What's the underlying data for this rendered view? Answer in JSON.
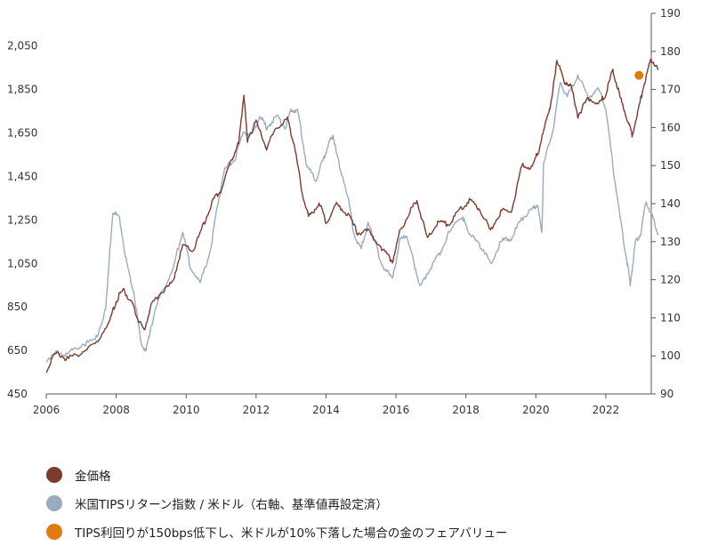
{
  "chart_data": {
    "type": "line",
    "xlim": [
      2006,
      2023.3
    ],
    "ylim_left": [
      450,
      2200
    ],
    "ylim_right": [
      90,
      190
    ],
    "x_ticks": [
      "2006",
      "2008",
      "2010",
      "2012",
      "2014",
      "2016",
      "2018",
      "2020",
      "2022"
    ],
    "y_left_ticks": [
      "450",
      "650",
      "850",
      "1,050",
      "1,250",
      "1,450",
      "1,650",
      "1,850",
      "2,050"
    ],
    "y_right_ticks": [
      "90",
      "100",
      "110",
      "120",
      "130",
      "140",
      "150",
      "160",
      "170",
      "180",
      "190"
    ],
    "colors": {
      "gold": "#7b3b2e",
      "tips": "#9aabc0",
      "fair_value": "#e07b10",
      "axis": "#555555"
    },
    "series": [
      {
        "key": "gold",
        "name": "金価格",
        "axis": "left",
        "points": [
          [
            2006.0,
            560
          ],
          [
            2006.3,
            640
          ],
          [
            2006.6,
            610
          ],
          [
            2007.0,
            640
          ],
          [
            2007.4,
            680
          ],
          [
            2007.8,
            780
          ],
          [
            2008.0,
            880
          ],
          [
            2008.2,
            930
          ],
          [
            2008.45,
            870
          ],
          [
            2008.6,
            800
          ],
          [
            2008.8,
            740
          ],
          [
            2009.0,
            860
          ],
          [
            2009.3,
            920
          ],
          [
            2009.6,
            960
          ],
          [
            2009.9,
            1130
          ],
          [
            2010.2,
            1110
          ],
          [
            2010.5,
            1230
          ],
          [
            2010.8,
            1350
          ],
          [
            2011.0,
            1390
          ],
          [
            2011.3,
            1530
          ],
          [
            2011.5,
            1600
          ],
          [
            2011.65,
            1830
          ],
          [
            2011.75,
            1620
          ],
          [
            2012.0,
            1700
          ],
          [
            2012.3,
            1580
          ],
          [
            2012.6,
            1680
          ],
          [
            2012.9,
            1710
          ],
          [
            2013.1,
            1590
          ],
          [
            2013.3,
            1390
          ],
          [
            2013.5,
            1260
          ],
          [
            2013.8,
            1330
          ],
          [
            2014.0,
            1240
          ],
          [
            2014.3,
            1320
          ],
          [
            2014.6,
            1280
          ],
          [
            2014.9,
            1190
          ],
          [
            2015.2,
            1200
          ],
          [
            2015.6,
            1120
          ],
          [
            2015.9,
            1060
          ],
          [
            2016.1,
            1190
          ],
          [
            2016.4,
            1290
          ],
          [
            2016.6,
            1340
          ],
          [
            2016.9,
            1160
          ],
          [
            2017.2,
            1240
          ],
          [
            2017.5,
            1230
          ],
          [
            2017.8,
            1290
          ],
          [
            2018.1,
            1340
          ],
          [
            2018.4,
            1300
          ],
          [
            2018.7,
            1200
          ],
          [
            2019.0,
            1290
          ],
          [
            2019.3,
            1290
          ],
          [
            2019.6,
            1500
          ],
          [
            2019.9,
            1490
          ],
          [
            2020.1,
            1580
          ],
          [
            2020.3,
            1710
          ],
          [
            2020.45,
            1800
          ],
          [
            2020.6,
            1990
          ],
          [
            2020.8,
            1890
          ],
          [
            2021.0,
            1870
          ],
          [
            2021.2,
            1730
          ],
          [
            2021.5,
            1810
          ],
          [
            2021.8,
            1780
          ],
          [
            2022.0,
            1830
          ],
          [
            2022.2,
            1940
          ],
          [
            2022.4,
            1820
          ],
          [
            2022.6,
            1720
          ],
          [
            2022.75,
            1640
          ],
          [
            2022.95,
            1770
          ],
          [
            2023.1,
            1880
          ],
          [
            2023.3,
            1990
          ],
          [
            2023.5,
            1940
          ]
        ]
      },
      {
        "key": "tips",
        "name": "米国TIPSリターン指数 / 米ドル（右軸、基準値再設定済）",
        "axis": "right",
        "points": [
          [
            2006.0,
            99
          ],
          [
            2006.3,
            101
          ],
          [
            2006.6,
            100.5
          ],
          [
            2007.0,
            103
          ],
          [
            2007.4,
            104
          ],
          [
            2007.7,
            112
          ],
          [
            2007.9,
            138
          ],
          [
            2008.1,
            136
          ],
          [
            2008.3,
            124
          ],
          [
            2008.5,
            117
          ],
          [
            2008.7,
            104
          ],
          [
            2008.85,
            101
          ],
          [
            2009.0,
            108
          ],
          [
            2009.3,
            117
          ],
          [
            2009.6,
            122
          ],
          [
            2009.9,
            133
          ],
          [
            2010.1,
            124
          ],
          [
            2010.4,
            119
          ],
          [
            2010.7,
            128
          ],
          [
            2010.9,
            140
          ],
          [
            2011.1,
            149
          ],
          [
            2011.4,
            152
          ],
          [
            2011.65,
            159
          ],
          [
            2011.9,
            158
          ],
          [
            2012.1,
            163
          ],
          [
            2012.3,
            160
          ],
          [
            2012.6,
            163
          ],
          [
            2012.85,
            160
          ],
          [
            2013.0,
            165
          ],
          [
            2013.2,
            164
          ],
          [
            2013.45,
            150
          ],
          [
            2013.7,
            146
          ],
          [
            2013.9,
            151
          ],
          [
            2014.05,
            155
          ],
          [
            2014.2,
            158
          ],
          [
            2014.3,
            153
          ],
          [
            2014.6,
            143
          ],
          [
            2014.8,
            132
          ],
          [
            2015.0,
            128
          ],
          [
            2015.2,
            135
          ],
          [
            2015.6,
            124
          ],
          [
            2015.9,
            120
          ],
          [
            2016.1,
            130
          ],
          [
            2016.3,
            132
          ],
          [
            2016.5,
            125
          ],
          [
            2016.7,
            118
          ],
          [
            2016.9,
            122
          ],
          [
            2017.2,
            126
          ],
          [
            2017.5,
            132
          ],
          [
            2017.9,
            137
          ],
          [
            2018.0,
            134
          ],
          [
            2018.2,
            131
          ],
          [
            2018.5,
            128
          ],
          [
            2018.7,
            124
          ],
          [
            2019.0,
            130
          ],
          [
            2019.3,
            131
          ],
          [
            2019.6,
            136
          ],
          [
            2019.85,
            138
          ],
          [
            2020.05,
            140
          ],
          [
            2020.17,
            132
          ],
          [
            2020.22,
            150
          ],
          [
            2020.5,
            160
          ],
          [
            2020.7,
            172
          ],
          [
            2020.9,
            168
          ],
          [
            2021.2,
            174
          ],
          [
            2021.5,
            168
          ],
          [
            2021.8,
            170
          ],
          [
            2022.0,
            165
          ],
          [
            2022.2,
            150
          ],
          [
            2022.4,
            137
          ],
          [
            2022.6,
            125
          ],
          [
            2022.7,
            119
          ],
          [
            2022.85,
            130
          ],
          [
            2023.0,
            132
          ],
          [
            2023.15,
            141
          ],
          [
            2023.35,
            136
          ],
          [
            2023.5,
            132
          ]
        ]
      }
    ],
    "fair_value_point": {
      "name": "TIPS利回りが150bps低下し、米ドルが10%下落した場合の金のフェアバリュー",
      "x": 2022.95,
      "y": 1915
    },
    "legend": [
      {
        "key": "gold",
        "label": "金価格"
      },
      {
        "key": "tips",
        "label": "米国TIPSリターン指数 / 米ドル（右軸、基準値再設定済）"
      },
      {
        "key": "fair_value",
        "label": "TIPS利回りが150bps低下し、米ドルが10%下落した場合の金のフェアバリュー"
      }
    ],
    "grid": false,
    "legend_position": "bottom-left"
  }
}
